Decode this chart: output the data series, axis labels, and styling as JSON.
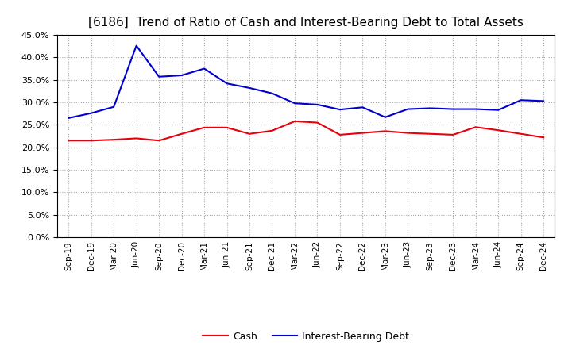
{
  "title": "[6186]  Trend of Ratio of Cash and Interest-Bearing Debt to Total Assets",
  "labels": [
    "Sep-19",
    "Dec-19",
    "Mar-20",
    "Jun-20",
    "Sep-20",
    "Dec-20",
    "Mar-21",
    "Jun-21",
    "Sep-21",
    "Dec-21",
    "Mar-22",
    "Jun-22",
    "Sep-22",
    "Dec-22",
    "Mar-23",
    "Jun-23",
    "Sep-23",
    "Dec-23",
    "Mar-24",
    "Jun-24",
    "Sep-24",
    "Dec-24"
  ],
  "cash": [
    0.215,
    0.215,
    0.217,
    0.22,
    0.215,
    0.23,
    0.244,
    0.244,
    0.23,
    0.237,
    0.258,
    0.255,
    0.228,
    0.232,
    0.236,
    0.232,
    0.23,
    0.228,
    0.245,
    0.238,
    0.23,
    0.222
  ],
  "interest_bearing_debt": [
    0.265,
    0.276,
    0.29,
    0.426,
    0.357,
    0.36,
    0.375,
    0.342,
    0.332,
    0.32,
    0.298,
    0.295,
    0.284,
    0.289,
    0.267,
    0.285,
    0.287,
    0.285,
    0.285,
    0.283,
    0.305,
    0.303
  ],
  "cash_color": "#e8000d",
  "ibd_color": "#0000cc",
  "ylim": [
    0.0,
    0.45
  ],
  "yticks": [
    0.0,
    0.05,
    0.1,
    0.15,
    0.2,
    0.25,
    0.3,
    0.35,
    0.4,
    0.45
  ],
  "background_color": "#ffffff",
  "plot_bg_color": "#ffffff",
  "grid_color": "#aaaaaa",
  "title_fontsize": 11,
  "legend_labels": [
    "Cash",
    "Interest-Bearing Debt"
  ],
  "line_width": 1.5
}
